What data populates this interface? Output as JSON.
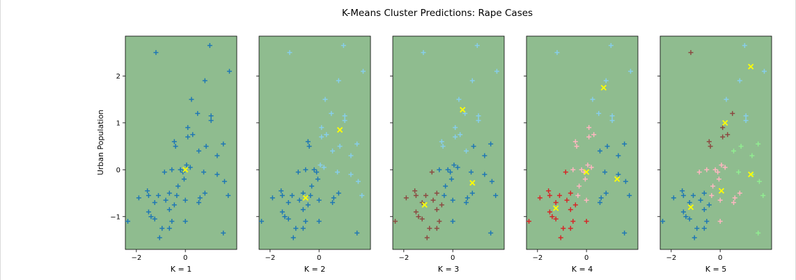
{
  "chart_data": {
    "type": "scatter",
    "title": "K-Means Cluster Predictions: Rape Cases",
    "ylabel": "Urban Population",
    "xlim": [
      -2.45,
      2.1
    ],
    "ylim": [
      -1.7,
      2.85
    ],
    "xticks": [
      "−2",
      "0"
    ],
    "xtick_values": [
      -2,
      0
    ],
    "yticks": [
      "−1",
      "0",
      "1",
      "2"
    ],
    "ytick_values": [
      -1,
      0,
      1,
      2
    ],
    "grid": false,
    "background_color": "#8fbc8f",
    "marker": "+",
    "centroid_marker": "x",
    "centroid_color": "#ffff00",
    "points": {
      "x": [
        -1.2,
        1.0,
        1.8,
        0.8,
        1.05,
        0.5,
        0.1,
        0.3,
        1.05,
        0.25,
        0.1,
        -0.45,
        1.55,
        -0.4,
        0.85,
        0.55,
        1.3,
        0.05,
        -0.55,
        -0.85,
        -0.2,
        -0.1,
        0.2,
        1.3,
        1.6,
        0.75,
        1.75,
        -0.05,
        -0.3,
        -0.65,
        -1.1,
        -1.55,
        -1.5,
        -1.25,
        -0.35,
        -0.8,
        0.0,
        -1.9,
        -0.45,
        0.6,
        0.55,
        0.8,
        -1.5,
        -1.4,
        -0.65,
        -1.25,
        -0.55,
        -0.65,
        0.0,
        -0.95,
        -1.05,
        -2.35,
        1.55
      ],
      "y": [
        2.5,
        2.65,
        2.1,
        1.9,
        1.15,
        1.2,
        0.9,
        0.75,
        1.05,
        1.5,
        0.7,
        0.6,
        0.55,
        0.5,
        0.5,
        0.4,
        0.3,
        0.1,
        0.0,
        -0.05,
        0.0,
        -0.05,
        0.05,
        -0.1,
        -0.25,
        -0.05,
        -0.55,
        -0.2,
        -0.35,
        -0.5,
        -0.55,
        -0.45,
        -0.55,
        -0.7,
        -0.55,
        -0.65,
        -0.65,
        -0.6,
        -0.75,
        -0.6,
        -0.7,
        -0.5,
        -0.9,
        -1.0,
        -0.85,
        -1.05,
        -1.1,
        -1.25,
        -1.1,
        -1.25,
        -1.45,
        -1.1,
        -1.35
      ]
    },
    "panels": [
      {
        "label": "K = 1",
        "labels": [
          0,
          0,
          0,
          0,
          0,
          0,
          0,
          0,
          0,
          0,
          0,
          0,
          0,
          0,
          0,
          0,
          0,
          0,
          0,
          0,
          0,
          0,
          0,
          0,
          0,
          0,
          0,
          0,
          0,
          0,
          0,
          0,
          0,
          0,
          0,
          0,
          0,
          0,
          0,
          0,
          0,
          0,
          0,
          0,
          0,
          0,
          0,
          0,
          0,
          0,
          0,
          0,
          0
        ],
        "centroids": [
          [
            0.0,
            0.0
          ]
        ]
      },
      {
        "label": "K = 2",
        "labels": [
          1,
          1,
          1,
          1,
          1,
          1,
          1,
          1,
          1,
          1,
          1,
          0,
          1,
          0,
          1,
          1,
          1,
          1,
          0,
          0,
          0,
          0,
          1,
          1,
          1,
          1,
          1,
          0,
          0,
          0,
          0,
          0,
          0,
          0,
          0,
          0,
          0,
          0,
          0,
          0,
          0,
          0,
          0,
          0,
          0,
          0,
          0,
          0,
          0,
          0,
          0,
          0,
          0
        ],
        "centroids": [
          [
            -0.55,
            -0.6
          ],
          [
            0.85,
            0.85
          ]
        ]
      },
      {
        "label": "K = 3",
        "labels": [
          2,
          2,
          2,
          2,
          2,
          2,
          2,
          2,
          2,
          2,
          2,
          2,
          1,
          2,
          1,
          2,
          1,
          1,
          1,
          0,
          1,
          1,
          1,
          1,
          1,
          1,
          1,
          1,
          1,
          0,
          0,
          0,
          0,
          0,
          1,
          0,
          1,
          0,
          0,
          1,
          1,
          1,
          0,
          0,
          0,
          0,
          0,
          0,
          1,
          0,
          0,
          0,
          1
        ],
        "centroids": [
          [
            -1.15,
            -0.75
          ],
          [
            0.8,
            -0.28
          ],
          [
            0.4,
            1.28
          ]
        ]
      },
      {
        "label": "K = 4",
        "labels": [
          2,
          2,
          2,
          2,
          2,
          2,
          3,
          3,
          2,
          2,
          3,
          3,
          1,
          3,
          1,
          1,
          1,
          3,
          3,
          0,
          3,
          3,
          3,
          1,
          1,
          1,
          1,
          3,
          3,
          0,
          0,
          0,
          0,
          0,
          3,
          0,
          3,
          0,
          0,
          1,
          1,
          1,
          0,
          0,
          0,
          0,
          0,
          0,
          0,
          0,
          0,
          0,
          1
        ],
        "centroids": [
          [
            -1.25,
            -0.82
          ],
          [
            1.25,
            -0.2
          ],
          [
            0.0,
            -0.05
          ],
          [
            0.7,
            1.75
          ]
        ]
      },
      {
        "label": "K = 5",
        "labels": [
          0,
          2,
          2,
          2,
          2,
          0,
          0,
          0,
          2,
          2,
          0,
          0,
          4,
          0,
          4,
          4,
          4,
          3,
          3,
          3,
          3,
          3,
          3,
          4,
          4,
          4,
          4,
          3,
          3,
          1,
          1,
          1,
          1,
          1,
          3,
          1,
          3,
          1,
          1,
          3,
          3,
          3,
          1,
          1,
          1,
          1,
          1,
          1,
          3,
          1,
          1,
          1,
          4
        ],
        "centroids": [
          [
            0.2,
            1.0
          ],
          [
            -1.2,
            -0.8
          ],
          [
            1.25,
            2.2
          ],
          [
            0.05,
            -0.45
          ],
          [
            1.25,
            -0.1
          ]
        ]
      }
    ],
    "cluster_colors": [
      [
        "#1f77b4"
      ],
      [
        "#1f77b4",
        "#87ceeb"
      ],
      [
        "#8c4a42",
        "#1f77b4",
        "#87ceeb"
      ],
      [
        "#d62728",
        "#1f77b4",
        "#87ceeb",
        "#ffb6c1"
      ],
      [
        "#8c4a42",
        "#1f77b4",
        "#87ceeb",
        "#ffb6c1",
        "#90ee90"
      ]
    ]
  }
}
